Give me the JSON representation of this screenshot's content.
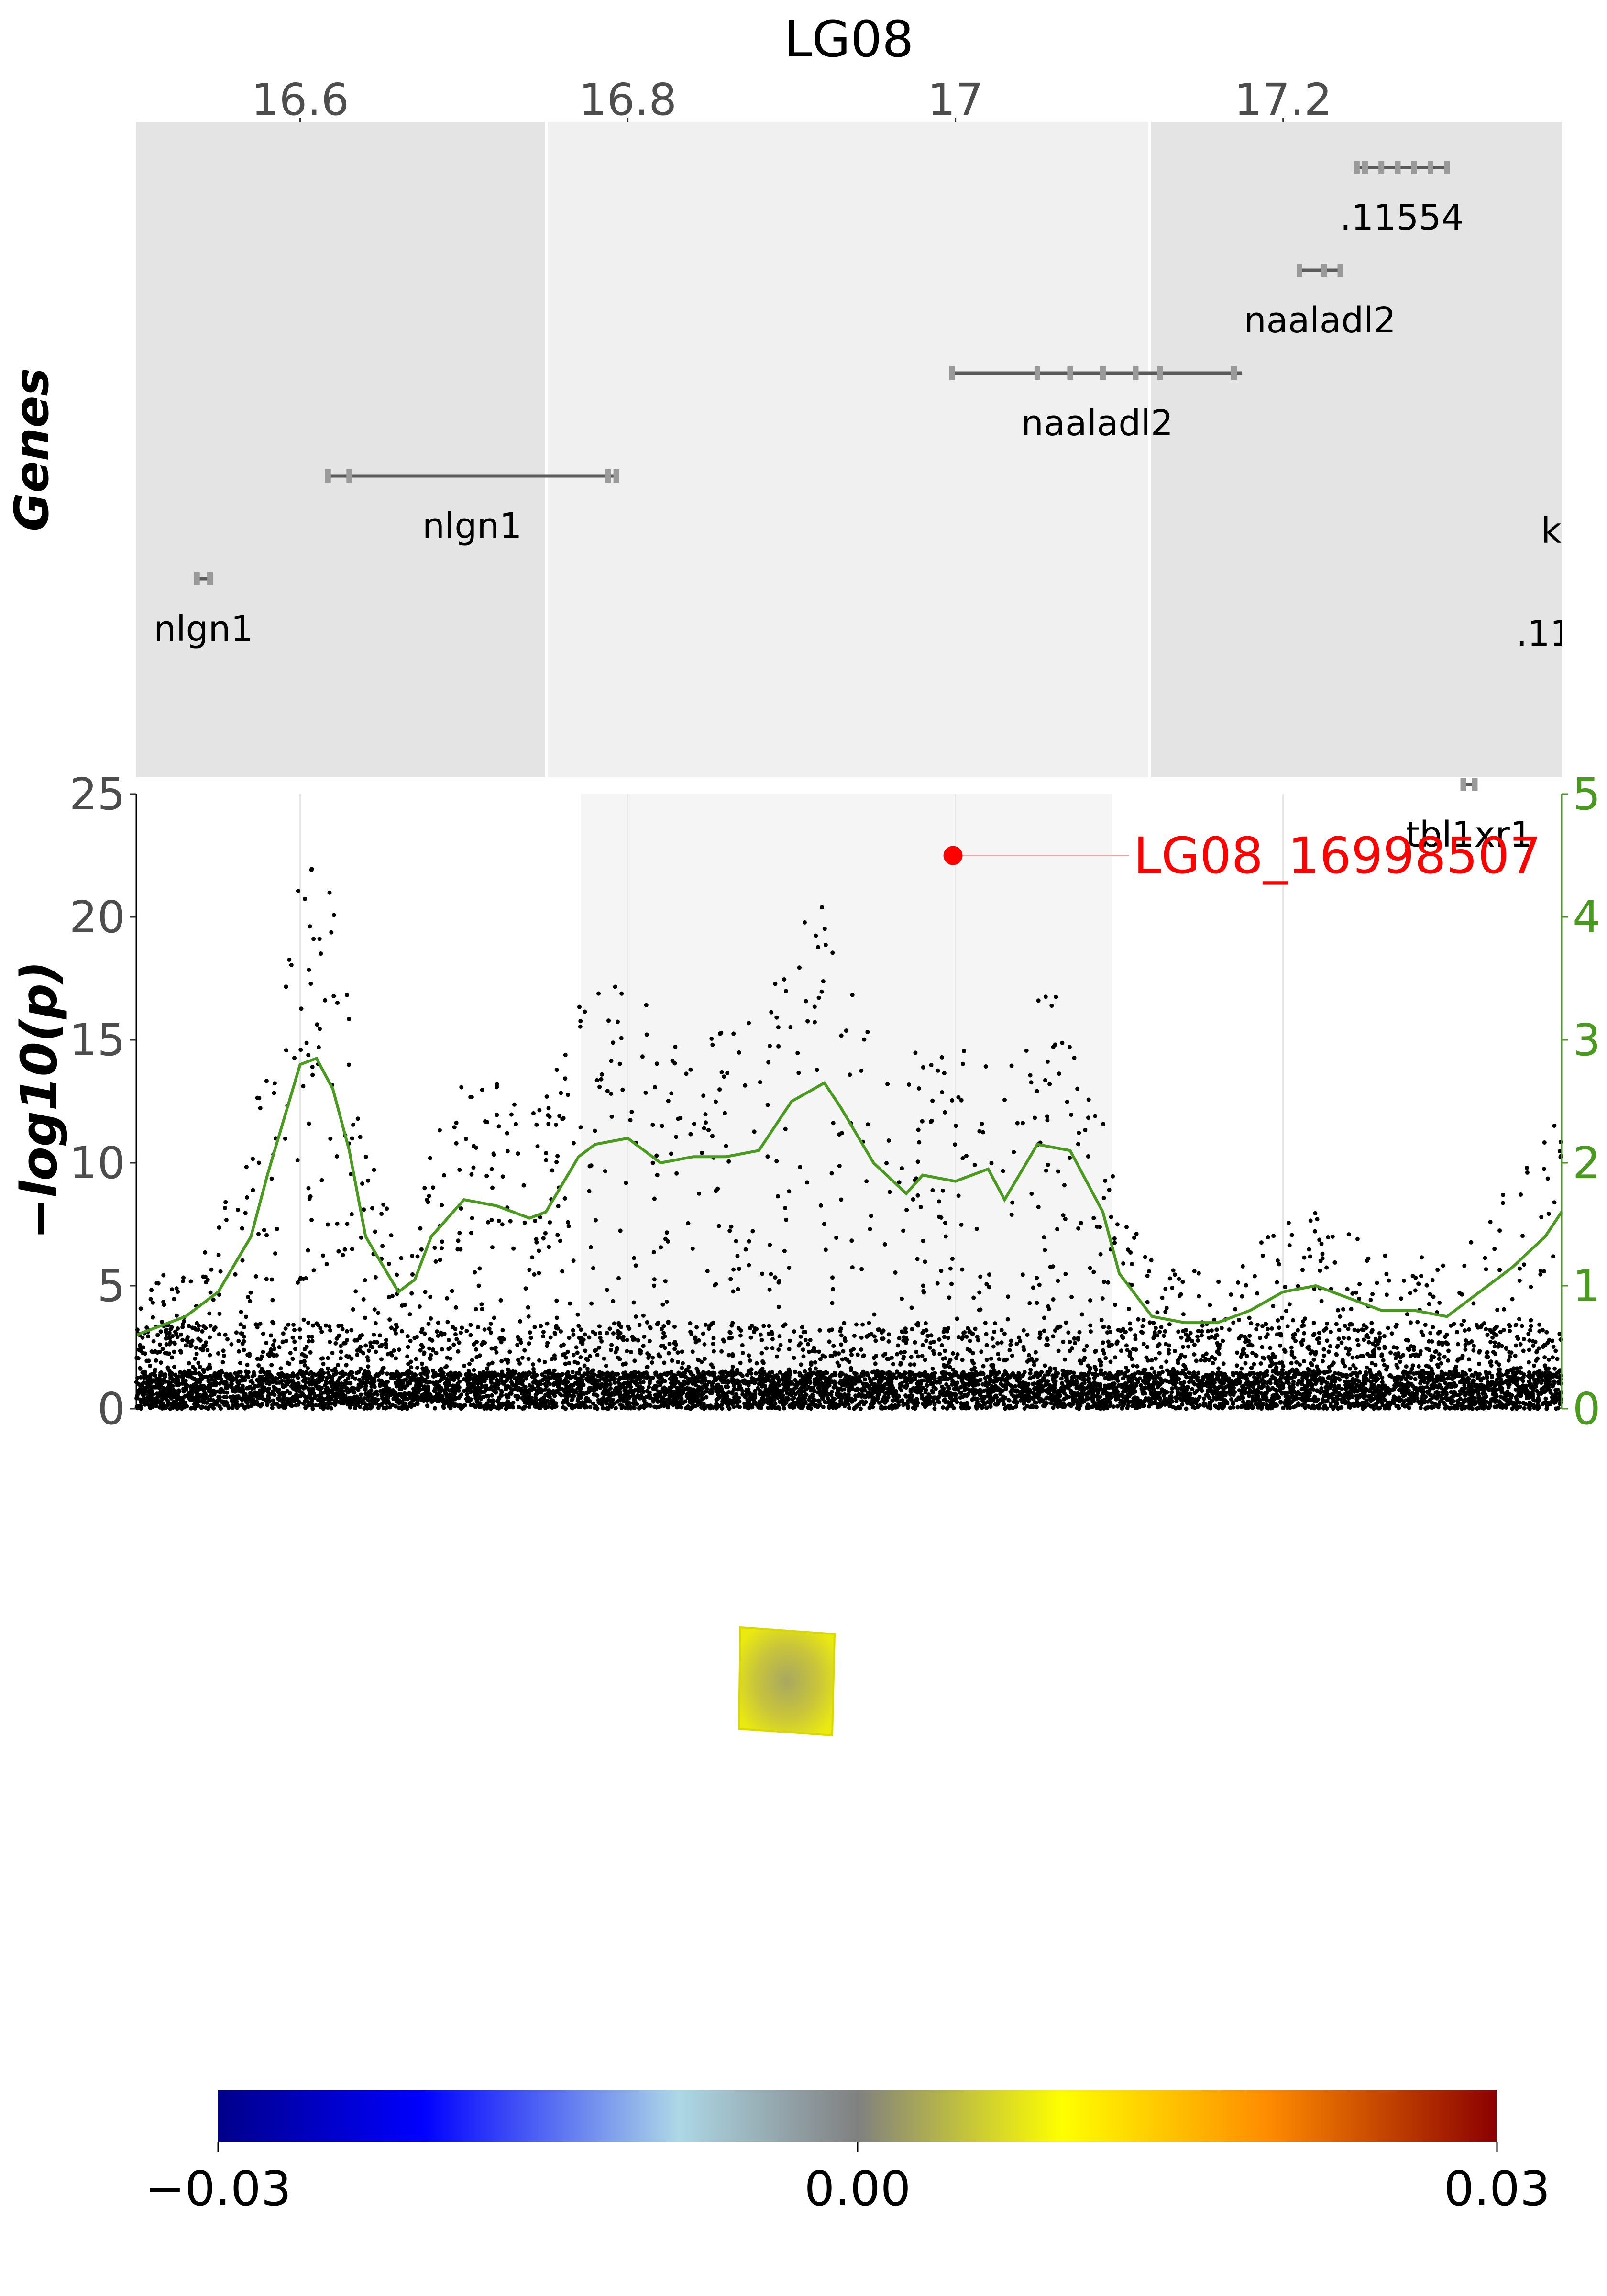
{
  "chart_data": [
    {
      "type": "gene-track",
      "title": "LG08",
      "ylabel": "Genes",
      "x_ticks": [
        "16.6",
        "16.8",
        "17",
        "17.2"
      ],
      "x_tick_values": [
        16.6,
        16.8,
        17.0,
        17.2
      ],
      "xlim": [
        16.5,
        17.37
      ],
      "highlight_region": [
        16.75,
        17.12
      ],
      "genes": [
        {
          "label": ".11554",
          "start": 17.245,
          "end": 17.3,
          "row": 0,
          "exons": [
            17.245,
            17.25,
            17.26,
            17.27,
            17.28,
            17.29,
            17.3
          ]
        },
        {
          "label": "naaladl2",
          "start": 17.21,
          "end": 17.235,
          "row": 1,
          "exons": [
            17.21,
            17.225,
            17.235
          ]
        },
        {
          "label": "naaladl2",
          "start": 16.998,
          "end": 17.175,
          "row": 2,
          "exons": [
            16.998,
            17.05,
            17.07,
            17.09,
            17.11,
            17.125,
            17.17
          ]
        },
        {
          "label": "nlgn1",
          "start": 16.617,
          "end": 16.793,
          "row": 3,
          "exons": [
            16.617,
            16.63,
            16.788,
            16.793
          ]
        },
        {
          "label": "nlgn1",
          "start": 16.537,
          "end": 16.545,
          "row": 4,
          "exons": [
            16.537,
            16.545
          ]
        },
        {
          "label": "tbl1xr1",
          "start": 17.31,
          "end": 17.317,
          "row": 6,
          "exons": [
            17.31,
            17.317
          ]
        }
      ],
      "clipped_labels": [
        "kc",
        ".11"
      ]
    },
    {
      "type": "scatter",
      "ylabel": "−log10(p)",
      "ylim": [
        0,
        25
      ],
      "y_ticks": [
        0,
        5,
        10,
        15,
        20,
        25
      ],
      "xlim": [
        16.5,
        17.37
      ],
      "y2lim": [
        0,
        5
      ],
      "y2_ticks": [
        0,
        1,
        2,
        3,
        4,
        5
      ],
      "lead_snp": {
        "label": "LG08_16998507",
        "x": 16.9985,
        "y": 22.5
      },
      "line_series": {
        "x": [
          16.5,
          16.53,
          16.55,
          16.57,
          16.58,
          16.6,
          16.61,
          16.62,
          16.63,
          16.64,
          16.66,
          16.67,
          16.68,
          16.7,
          16.72,
          16.74,
          16.75,
          16.77,
          16.78,
          16.8,
          16.82,
          16.84,
          16.86,
          16.88,
          16.9,
          16.92,
          16.93,
          16.95,
          16.97,
          16.98,
          17.0,
          17.02,
          17.03,
          17.05,
          17.07,
          17.09,
          17.1,
          17.12,
          17.14,
          17.16,
          17.18,
          17.2,
          17.22,
          17.24,
          17.26,
          17.28,
          17.3,
          17.32,
          17.34,
          17.36,
          17.37
        ],
        "y": [
          0.6,
          0.75,
          0.95,
          1.4,
          1.9,
          2.8,
          2.85,
          2.6,
          2.1,
          1.4,
          0.95,
          1.05,
          1.4,
          1.7,
          1.65,
          1.55,
          1.6,
          2.05,
          2.15,
          2.2,
          2.0,
          2.05,
          2.05,
          2.1,
          2.5,
          2.65,
          2.45,
          2.0,
          1.75,
          1.9,
          1.85,
          1.95,
          1.7,
          2.15,
          2.1,
          1.6,
          1.1,
          0.75,
          0.7,
          0.7,
          0.8,
          0.95,
          1.0,
          0.9,
          0.8,
          0.8,
          0.75,
          0.95,
          1.15,
          1.4,
          1.6
        ]
      }
    },
    {
      "type": "heatmap",
      "colorbar": {
        "ticks": [
          "−0.03",
          "0.00",
          "0.03"
        ],
        "min": -0.03,
        "max": 0.03,
        "colors": [
          "#00008b",
          "#0000ff",
          "#add8e6",
          "#808080",
          "#ffff00",
          "#ff8c00",
          "#8b0000"
        ]
      }
    }
  ],
  "colors": {
    "accent_green": "#4a9a1f",
    "lead_red": "#ff0000",
    "panel_dark": "#e4e4e4",
    "panel_light": "#f0f0f0"
  }
}
